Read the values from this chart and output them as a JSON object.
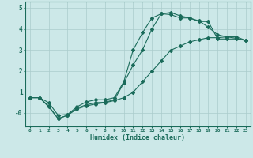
{
  "xlabel": "Humidex (Indice chaleur)",
  "background_color": "#cce8e8",
  "grid_color": "#aacccc",
  "line_color": "#1a6b5a",
  "xlim": [
    -0.5,
    23.5
  ],
  "ylim": [
    -0.65,
    5.3
  ],
  "yticks": [
    0,
    1,
    2,
    3,
    4,
    5
  ],
  "ytick_labels": [
    "-0",
    "1",
    "2",
    "3",
    "4",
    "5"
  ],
  "xticks": [
    0,
    1,
    2,
    3,
    4,
    5,
    6,
    7,
    8,
    9,
    10,
    11,
    12,
    13,
    14,
    15,
    16,
    17,
    18,
    19,
    20,
    21,
    22,
    23
  ],
  "series1_x": [
    0,
    1,
    2,
    3,
    4,
    5,
    6,
    7,
    8,
    9,
    10,
    11,
    12,
    13,
    14,
    15,
    16,
    17,
    18,
    19,
    20,
    21,
    22,
    23
  ],
  "series1_y": [
    0.72,
    0.72,
    0.48,
    -0.12,
    -0.08,
    0.28,
    0.52,
    0.62,
    0.62,
    0.72,
    1.48,
    3.0,
    3.82,
    4.52,
    4.72,
    4.68,
    4.52,
    4.52,
    4.35,
    4.35,
    3.52,
    3.52,
    3.52,
    3.45
  ],
  "series2_x": [
    0,
    1,
    2,
    3,
    4,
    5,
    6,
    7,
    8,
    9,
    10,
    11,
    12,
    13,
    14,
    15,
    16,
    17,
    18,
    19,
    20,
    21,
    22,
    23
  ],
  "series2_y": [
    0.72,
    0.72,
    0.32,
    -0.28,
    -0.12,
    0.22,
    0.38,
    0.48,
    0.5,
    0.62,
    1.42,
    2.28,
    3.0,
    4.0,
    4.72,
    4.78,
    4.62,
    4.52,
    4.38,
    4.08,
    3.72,
    3.62,
    3.55,
    3.45
  ],
  "series3_x": [
    0,
    1,
    2,
    3,
    4,
    5,
    6,
    7,
    8,
    9,
    10,
    11,
    12,
    13,
    14,
    15,
    16,
    17,
    18,
    19,
    20,
    21,
    22,
    23
  ],
  "series3_y": [
    0.72,
    0.72,
    0.28,
    -0.28,
    -0.12,
    0.18,
    0.32,
    0.42,
    0.48,
    0.58,
    0.72,
    0.98,
    1.48,
    1.98,
    2.48,
    2.98,
    3.18,
    3.38,
    3.48,
    3.58,
    3.58,
    3.62,
    3.62,
    3.45
  ]
}
